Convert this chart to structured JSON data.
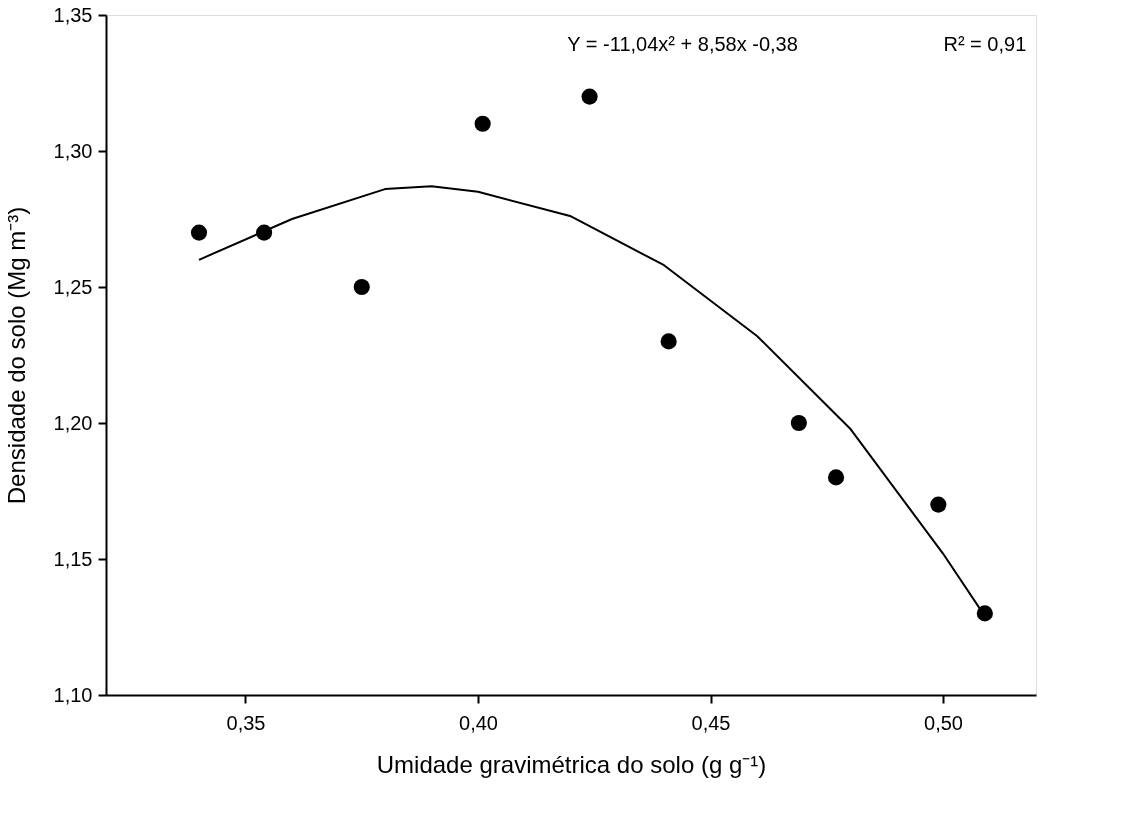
{
  "chart_data": {
    "type": "scatter",
    "xlabel": "Umidade gravimétrica do solo (g g⁻¹)",
    "ylabel": "Densidade do solo (Mg m⁻³)",
    "xlim": [
      0.32,
      0.52
    ],
    "xticks": [
      {
        "value": 0.35,
        "label": "0,35"
      },
      {
        "value": 0.4,
        "label": "0,40"
      },
      {
        "value": 0.45,
        "label": "0,45"
      },
      {
        "value": 0.5,
        "label": "0,50"
      }
    ],
    "ylim": [
      1.1,
      1.35
    ],
    "yticks": [
      {
        "value": 1.1,
        "label": "1,10"
      },
      {
        "value": 1.15,
        "label": "1,15"
      },
      {
        "value": 1.2,
        "label": "1,20"
      },
      {
        "value": 1.25,
        "label": "1,25"
      },
      {
        "value": 1.3,
        "label": "1,30"
      },
      {
        "value": 1.35,
        "label": "1,35"
      }
    ],
    "grid": false,
    "series": [
      {
        "marker": "circle",
        "color": "#000000",
        "x": [
          0.34,
          0.354,
          0.375,
          0.401,
          0.424,
          0.441,
          0.469,
          0.477,
          0.499,
          0.509
        ],
        "values": [
          1.27,
          1.27,
          1.25,
          1.31,
          1.32,
          1.23,
          1.2,
          1.18,
          1.17,
          1.13
        ]
      },
      {
        "type": "line",
        "marker": "none",
        "color": "#000000",
        "line_style": "solid",
        "x": [
          0.34,
          0.36,
          0.38,
          0.39,
          0.4,
          0.42,
          0.44,
          0.46,
          0.48,
          0.5,
          0.509
        ],
        "values": [
          1.26,
          1.275,
          1.286,
          1.287,
          1.285,
          1.276,
          1.258,
          1.232,
          1.198,
          1.152,
          1.129
        ]
      }
    ],
    "annotations": [
      "Y = -11,04x² + 8,58x  -0,38",
      "R² = 0,91"
    ]
  }
}
